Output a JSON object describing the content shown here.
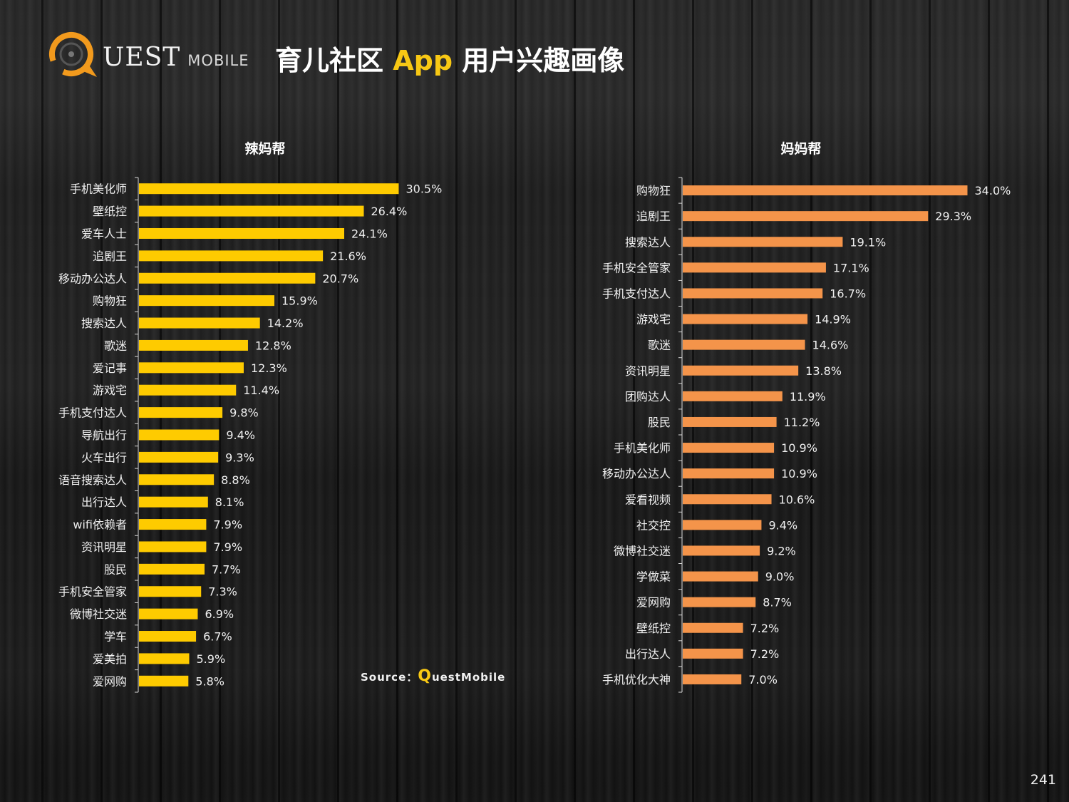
{
  "brand": {
    "logo_main": "UEST",
    "logo_sub": "MOBILE"
  },
  "page": {
    "title_part1": "育儿社区 ",
    "title_accent": "App",
    "title_part2": " 用户兴趣画像",
    "page_number": "241",
    "source_prefix": "Source：",
    "source_q": "Q",
    "source_name": "uestMobile"
  },
  "colors": {
    "left_bars": "#fecb00",
    "right_bars": "#f4944a",
    "accent": "#f8c814",
    "logo_ring": "#f29a1d"
  },
  "chart_data": [
    {
      "type": "bar",
      "orientation": "horizontal",
      "title": "辣妈帮",
      "categories": [
        "手机美化师",
        "壁纸控",
        "爱车人士",
        "追剧王",
        "移动办公达人",
        "购物狂",
        "搜索达人",
        "歌迷",
        "爱记事",
        "游戏宅",
        "手机支付达人",
        "导航出行",
        "火车出行",
        "语音搜索达人",
        "出行达人",
        "wifi依赖者",
        "资讯明星",
        "股民",
        "手机安全管家",
        "微博社交迷",
        "学车",
        "爱美拍",
        "爱网购"
      ],
      "values": [
        30.5,
        26.4,
        24.1,
        21.6,
        20.7,
        15.9,
        14.2,
        12.8,
        12.3,
        11.4,
        9.8,
        9.4,
        9.3,
        8.8,
        8.1,
        7.9,
        7.9,
        7.7,
        7.3,
        6.9,
        6.7,
        5.9,
        5.8
      ],
      "value_labels": [
        "30.5%",
        "26.4%",
        "24.1%",
        "21.6%",
        "20.7%",
        "15.9%",
        "14.2%",
        "12.8%",
        "12.3%",
        "11.4%",
        "9.8%",
        "9.4%",
        "9.3%",
        "8.8%",
        "8.1%",
        "7.9%",
        "7.9%",
        "7.7%",
        "7.3%",
        "6.9%",
        "6.7%",
        "5.9%",
        "5.8%"
      ],
      "unit": "%",
      "grid": false,
      "legend": false
    },
    {
      "type": "bar",
      "orientation": "horizontal",
      "title": "妈妈帮",
      "categories": [
        "购物狂",
        "追剧王",
        "搜索达人",
        "手机安全管家",
        "手机支付达人",
        "游戏宅",
        "歌迷",
        "资讯明星",
        "团购达人",
        "股民",
        "手机美化师",
        "移动办公达人",
        "爱看视频",
        "社交控",
        "微博社交迷",
        "学做菜",
        "爱网购",
        "壁纸控",
        "出行达人",
        "手机优化大神"
      ],
      "values": [
        34.0,
        29.3,
        19.1,
        17.1,
        16.7,
        14.9,
        14.6,
        13.8,
        11.9,
        11.2,
        10.9,
        10.9,
        10.6,
        9.4,
        9.2,
        9.0,
        8.7,
        7.2,
        7.2,
        7.0
      ],
      "value_labels": [
        "34.0%",
        "29.3%",
        "19.1%",
        "17.1%",
        "16.7%",
        "14.9%",
        "14.6%",
        "13.8%",
        "11.9%",
        "11.2%",
        "10.9%",
        "10.9%",
        "10.6%",
        "9.4%",
        "9.2%",
        "9.0%",
        "8.7%",
        "7.2%",
        "7.2%",
        "7.0%"
      ],
      "unit": "%",
      "grid": false,
      "legend": false
    }
  ]
}
